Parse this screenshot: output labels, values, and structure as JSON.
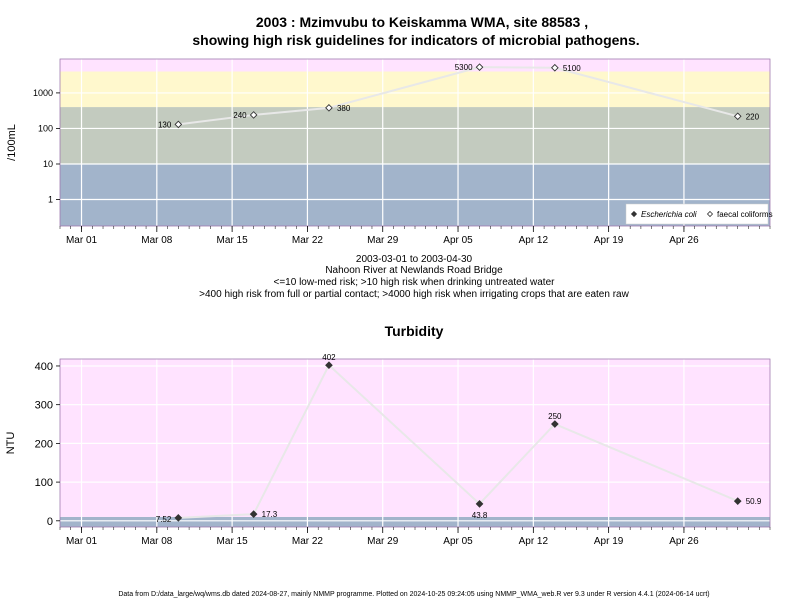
{
  "chart_data": [
    {
      "type": "line",
      "title": "2003 : Mzimvubu to Keiskamma WMA, site 88583 ,",
      "subtitle": "showing high risk guidelines for indicators of microbial pathogens.",
      "ylabel": "/100mL",
      "y_scale": "log",
      "y_ticks": [
        "1",
        "10",
        "100",
        "1000"
      ],
      "x_ticks": [
        "Mar 01",
        "Mar 08",
        "Mar 15",
        "Mar 22",
        "Mar 29",
        "Apr 05",
        "Apr 12",
        "Apr 19",
        "Apr 26"
      ],
      "x_tick_dates": [
        "2003-03-01",
        "2003-03-08",
        "2003-03-15",
        "2003-03-22",
        "2003-03-29",
        "2003-04-05",
        "2003-04-12",
        "2003-04-19",
        "2003-04-26"
      ],
      "x_range": [
        "2003-02-27",
        "2003-05-04"
      ],
      "y_range": [
        0.18,
        9000
      ],
      "bands": [
        {
          "from": 0.18,
          "to": 10,
          "color": "#a2b4cb"
        },
        {
          "from": 10,
          "to": 400,
          "color": "#c3cbbf"
        },
        {
          "from": 400,
          "to": 4000,
          "color": "#fff8cd"
        },
        {
          "from": 4000,
          "to": 9000,
          "color": "#ffe3ff"
        }
      ],
      "series": [
        {
          "name": "faecal coliforms",
          "marker": "open-diamond",
          "points": [
            {
              "x": "2003-03-10",
              "y": 130,
              "label": "130"
            },
            {
              "x": "2003-03-17",
              "y": 240,
              "label": "240"
            },
            {
              "x": "2003-03-24",
              "y": 380,
              "label": "380"
            },
            {
              "x": "2003-04-07",
              "y": 5300,
              "label": "5300"
            },
            {
              "x": "2003-04-14",
              "y": 5100,
              "label": "5100"
            },
            {
              "x": "2003-05-01",
              "y": 220,
              "label": "220"
            }
          ]
        }
      ],
      "legend": {
        "position": "bottom-right",
        "entries": [
          {
            "label": "Escherichia coli",
            "marker": "filled-diamond"
          },
          {
            "label": "faecal coliforms",
            "marker": "open-diamond"
          }
        ]
      },
      "notes": [
        "2003-03-01 to 2003-04-30",
        "Nahoon River at Newlands Road Bridge",
        "<=10 low-med risk; >10 high risk when drinking untreated water",
        ">400 high risk from full or partial contact; >4000 high risk when irrigating crops that are eaten raw"
      ]
    },
    {
      "type": "line",
      "title": "Turbidity",
      "ylabel": "NTU",
      "y_scale": "linear",
      "y_ticks": [
        "0",
        "100",
        "200",
        "300",
        "400"
      ],
      "y_tick_values": [
        0,
        100,
        200,
        300,
        400
      ],
      "x_ticks": [
        "Mar 01",
        "Mar 08",
        "Mar 15",
        "Mar 22",
        "Mar 29",
        "Apr 05",
        "Apr 12",
        "Apr 19",
        "Apr 26"
      ],
      "x_tick_dates": [
        "2003-03-01",
        "2003-03-08",
        "2003-03-15",
        "2003-03-22",
        "2003-03-29",
        "2003-04-05",
        "2003-04-12",
        "2003-04-19",
        "2003-04-26"
      ],
      "x_range": [
        "2003-02-27",
        "2003-05-04"
      ],
      "y_range": [
        -16,
        418
      ],
      "bands": [
        {
          "from": -16,
          "to": 10,
          "color": "#a2b4cb"
        },
        {
          "from": 10,
          "to": 418,
          "color": "#ffe3ff"
        }
      ],
      "series": [
        {
          "name": "",
          "marker": "filled-diamond",
          "points": [
            {
              "x": "2003-03-10",
              "y": 7.52,
              "label": "7.52",
              "label_pos": "left"
            },
            {
              "x": "2003-03-17",
              "y": 17.3,
              "label": "17.3",
              "label_pos": "right"
            },
            {
              "x": "2003-03-24",
              "y": 402,
              "label": "402",
              "label_pos": "above"
            },
            {
              "x": "2003-04-07",
              "y": 43.8,
              "label": "43.8",
              "label_pos": "below"
            },
            {
              "x": "2003-04-14",
              "y": 250,
              "label": "250",
              "label_pos": "above"
            },
            {
              "x": "2003-05-01",
              "y": 50.9,
              "label": "50.9",
              "label_pos": "right"
            }
          ]
        }
      ]
    }
  ],
  "footer": "Data from D:/data_large/wq/wms.db dated 2024-08-27, mainly NMMP programme. Plotted on 2024-10-25 09:24:05 using NMMP_WMA_web.R ver 9.3 under R version 4.4.1 (2024-06-14 ucrt)"
}
